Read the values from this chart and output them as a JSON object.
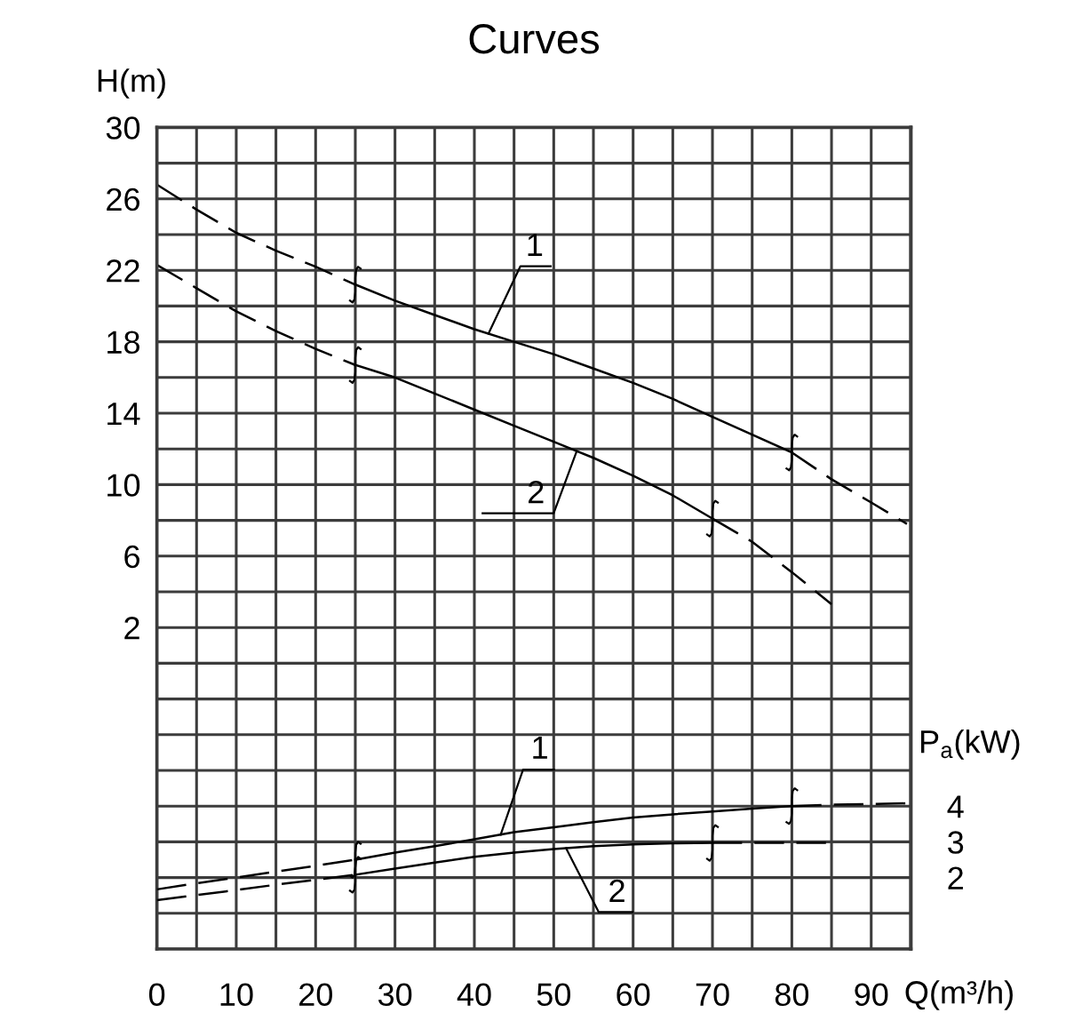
{
  "chart_data": {
    "type": "line",
    "title": "Curves",
    "xlabel": "Q(m³/h)",
    "ylabel": "H(m)",
    "y2label": "P$_{a}$(kW)",
    "xlim": [
      0,
      95
    ],
    "xticks": [
      0,
      {
        "value": 5,
        "label": null
      },
      10,
      {
        "value": 15,
        "label": null
      },
      20,
      {
        "value": 25,
        "label": null
      },
      30,
      {
        "value": 35,
        "label": null
      },
      40,
      {
        "value": 45,
        "label": null
      },
      50,
      {
        "value": 55,
        "label": null
      },
      60,
      {
        "value": 65,
        "label": null
      },
      70,
      {
        "value": 75,
        "label": null
      },
      80,
      {
        "value": 85,
        "label": null
      },
      90,
      {
        "value": 95,
        "label": null
      }
    ],
    "ylim": [
      -16,
      30
    ],
    "yticks": [
      {
        "value": -16,
        "label": null
      },
      {
        "value": -14,
        "label": null
      },
      {
        "value": -12,
        "label": null
      },
      {
        "value": -10,
        "label": null
      },
      {
        "value": -8,
        "label": null
      },
      {
        "value": -6,
        "label": null
      },
      {
        "value": -4,
        "label": null
      },
      {
        "value": -2,
        "label": null
      },
      {
        "value": 0,
        "label": null
      },
      2,
      {
        "value": 4,
        "label": null
      },
      6,
      {
        "value": 8,
        "label": null
      },
      10,
      {
        "value": 12,
        "label": null
      },
      14,
      {
        "value": 16,
        "label": null
      },
      18,
      {
        "value": 20,
        "label": null
      },
      22,
      {
        "value": 24,
        "label": null
      },
      26,
      {
        "value": 28,
        "label": null
      },
      30
    ],
    "y2lim": [
      0,
      23
    ],
    "y2ticks": [
      2,
      3,
      4
    ],
    "grid": true,
    "series": [
      {
        "name": "1",
        "color": "#000000",
        "line_style": "solid",
        "x": [
          25,
          30,
          35,
          40,
          45,
          50,
          55,
          60,
          65,
          70,
          75,
          80
        ],
        "values": [
          21.2,
          20.3,
          19.5,
          18.7,
          18.0,
          17.3,
          16.5,
          15.7,
          14.8,
          13.8,
          12.8,
          11.8
        ]
      },
      {
        "name": "2",
        "color": "#000000",
        "line_style": "solid",
        "x": [
          25,
          30,
          35,
          40,
          45,
          50,
          55,
          60,
          65,
          70
        ],
        "values": [
          16.7,
          16.0,
          15.1,
          14.2,
          13.3,
          12.4,
          11.5,
          10.5,
          9.4,
          8.1
        ]
      },
      {
        "name": "1",
        "color": "#000000",
        "line_style": "solid",
        "axis": "y2",
        "x": [
          25,
          30,
          35,
          40,
          45,
          50,
          55,
          60,
          65,
          70,
          75,
          80
        ],
        "values": [
          2.5,
          2.7,
          2.88,
          3.07,
          3.27,
          3.41,
          3.55,
          3.68,
          3.77,
          3.85,
          3.93,
          4.0
        ]
      },
      {
        "name": "2",
        "color": "#000000",
        "line_style": "solid",
        "axis": "y2",
        "x": [
          25,
          30,
          35,
          40,
          45,
          50,
          55,
          60,
          65,
          70
        ],
        "values": [
          2.08,
          2.25,
          2.42,
          2.58,
          2.7,
          2.8,
          2.88,
          2.93,
          2.96,
          2.97
        ]
      },
      {
        "color": "#000000",
        "line_style": "dashed",
        "x": [
          0,
          5,
          10,
          15,
          20,
          25
        ],
        "values": [
          26.8,
          25.4,
          24.1,
          23.1,
          22.2,
          21.2
        ]
      },
      {
        "color": "#000000",
        "line_style": "dashed",
        "x": [
          80,
          85,
          90,
          94.5
        ],
        "values": [
          11.8,
          10.3,
          9.0,
          7.8
        ]
      },
      {
        "color": "#000000",
        "line_style": "dashed",
        "x": [
          0,
          5,
          10,
          15,
          20,
          25
        ],
        "values": [
          22.3,
          21.0,
          19.7,
          18.6,
          17.6,
          16.7
        ]
      },
      {
        "color": "#000000",
        "line_style": "dashed",
        "x": [
          70,
          75,
          80,
          85
        ],
        "values": [
          8.1,
          6.8,
          5.1,
          3.3
        ]
      },
      {
        "color": "#000000",
        "line_style": "dashed",
        "axis": "y2",
        "x": [
          0,
          5,
          10,
          15,
          20,
          25
        ],
        "values": [
          1.67,
          1.84,
          2.0,
          2.17,
          2.33,
          2.5
        ]
      },
      {
        "color": "#000000",
        "line_style": "dashed",
        "axis": "y2",
        "x": [
          80,
          85,
          90,
          95
        ],
        "values": [
          4.0,
          4.04,
          4.06,
          4.08
        ]
      },
      {
        "color": "#000000",
        "line_style": "dashed",
        "axis": "y2",
        "x": [
          0,
          5,
          10,
          15,
          20,
          25
        ],
        "values": [
          1.37,
          1.51,
          1.65,
          1.8,
          1.94,
          2.08
        ]
      },
      {
        "color": "#000000",
        "line_style": "dashed",
        "axis": "y2",
        "x": [
          70,
          75,
          80,
          84.7
        ],
        "values": [
          2.97,
          2.97,
          2.97,
          2.97
        ]
      }
    ]
  }
}
